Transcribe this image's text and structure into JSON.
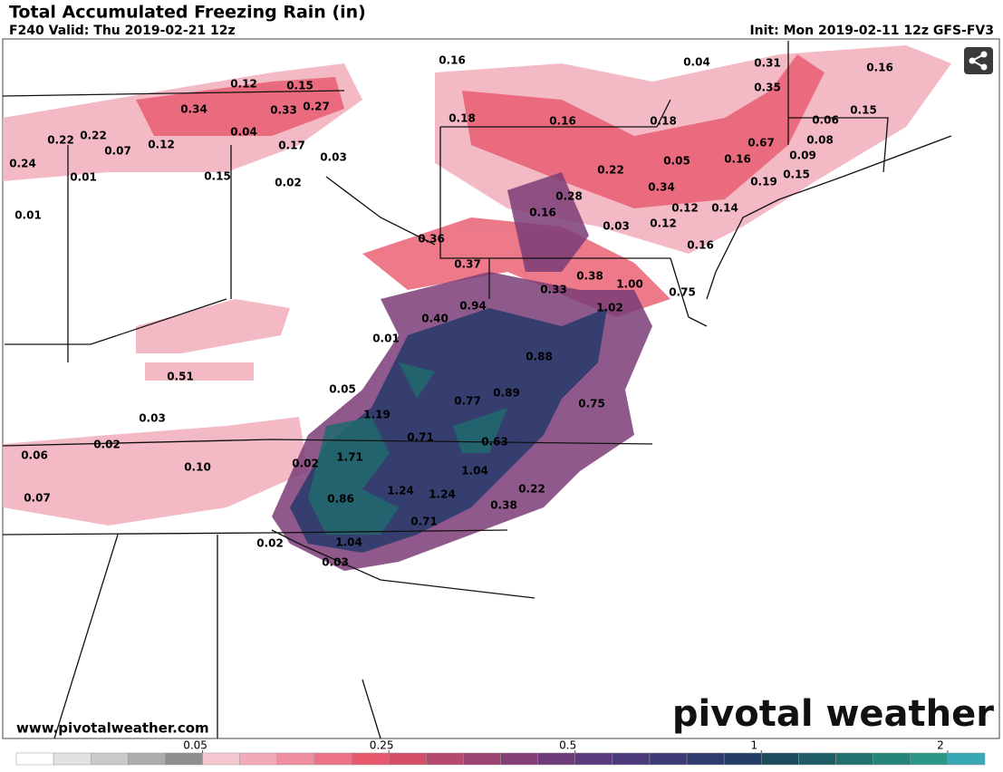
{
  "header": {
    "title": "Total Accumulated Freezing Rain (in)",
    "valid": "F240 Valid: Thu 2019-02-21 12z",
    "init": "Init: Mon 2019-02-11 12z GFS-FV3"
  },
  "map": {
    "labels": [
      "0.16",
      "0.04",
      "0.31",
      "0.16",
      "0.12",
      "0.15",
      "0.35",
      "0.34",
      "0.33",
      "0.27",
      "0.15",
      "0.18",
      "0.16",
      "0.18",
      "0.06",
      "0.04",
      "0.22",
      "0.22",
      "0.12",
      "0.17",
      "0.67",
      "0.08",
      "0.07",
      "0.03",
      "0.09",
      "0.16",
      "0.05",
      "0.24",
      "0.22",
      "0.15",
      "0.01",
      "0.15",
      "0.02",
      "0.19",
      "0.34",
      "0.28",
      "0.12",
      "0.14",
      "0.16",
      "0.01",
      "0.03",
      "0.12",
      "0.36",
      "0.16",
      "0.37",
      "0.38",
      "0.33",
      "1.00",
      "0.75",
      "0.94",
      "1.02",
      "0.40",
      "0.01",
      "0.88",
      "0.51",
      "0.05",
      "0.89",
      "0.77",
      "0.75",
      "1.19",
      "0.03",
      "0.71",
      "0.63",
      "0.02",
      "0.06",
      "1.71",
      "0.02",
      "0.10",
      "1.04",
      "0.22",
      "1.24",
      "1.24",
      "0.86",
      "0.07",
      "0.38",
      "0.71",
      "0.02",
      "1.04",
      "0.03"
    ]
  },
  "footer": {
    "website": "www.pivotalweather.com",
    "logo": "pivotal weather"
  },
  "colorbar": {
    "ticks": [
      0.05,
      0.25,
      0.5,
      1,
      2
    ],
    "colors": [
      "#ffffff",
      "#e2e2e2",
      "#c9c9c9",
      "#adadad",
      "#8e8e8e",
      "#f4c7d0",
      "#f2aab8",
      "#ef8e9e",
      "#ec7386",
      "#e8586c",
      "#d4506a",
      "#b6496e",
      "#9d4372",
      "#853e75",
      "#6d3b79",
      "#5b3b7e",
      "#4b3b7c",
      "#3d3a76",
      "#2f3b6e",
      "#233d66",
      "#1d4b5e",
      "#1f5d66",
      "#22716f",
      "#268579",
      "#2a9884",
      "#38a8b6"
    ]
  }
}
